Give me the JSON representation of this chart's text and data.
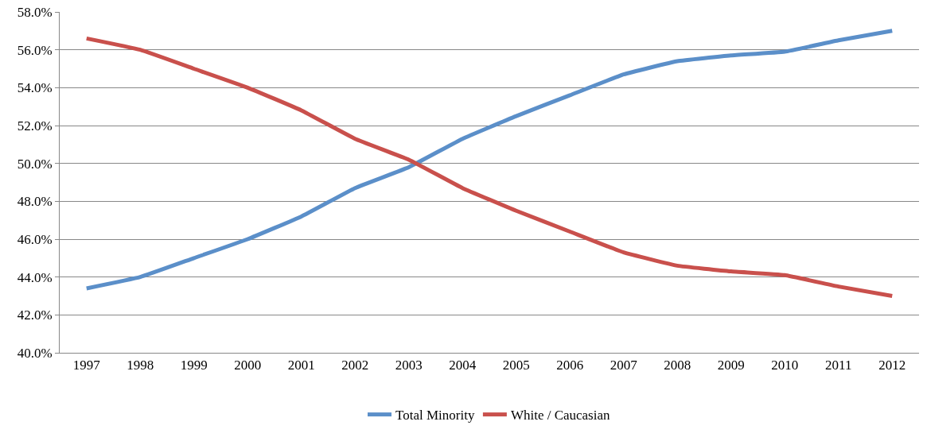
{
  "chart_data": {
    "type": "line",
    "categories": [
      "1997",
      "1998",
      "1999",
      "2000",
      "2001",
      "2002",
      "2003",
      "2004",
      "2005",
      "2006",
      "2007",
      "2008",
      "2009",
      "2010",
      "2011",
      "2012"
    ],
    "series": [
      {
        "name": "Total Minority",
        "color": "#5b8fc9",
        "values": [
          43.4,
          44.0,
          45.0,
          46.0,
          47.2,
          48.7,
          49.8,
          51.3,
          52.5,
          53.6,
          54.7,
          55.4,
          55.7,
          55.9,
          56.5,
          57.0
        ]
      },
      {
        "name": "White / Caucasian",
        "color": "#c9504c",
        "values": [
          56.6,
          56.0,
          55.0,
          54.0,
          52.8,
          51.3,
          50.2,
          48.7,
          47.5,
          46.4,
          45.3,
          44.6,
          44.3,
          44.1,
          43.5,
          43.0
        ]
      }
    ],
    "ylim": [
      40,
      58
    ],
    "yticks": [
      {
        "value": 40,
        "label": "40.0%"
      },
      {
        "value": 42,
        "label": "42.0%"
      },
      {
        "value": 44,
        "label": "44.0%"
      },
      {
        "value": 46,
        "label": "46.0%"
      },
      {
        "value": 48,
        "label": "48.0%"
      },
      {
        "value": 50,
        "label": "50.0%"
      },
      {
        "value": 52,
        "label": "52.0%"
      },
      {
        "value": 54,
        "label": "54.0%"
      },
      {
        "value": 56,
        "label": "56.0%"
      },
      {
        "value": 58,
        "label": "58.0%"
      }
    ],
    "grid": "y",
    "legend": "bottom",
    "marker": "none",
    "line_style": "solid"
  }
}
